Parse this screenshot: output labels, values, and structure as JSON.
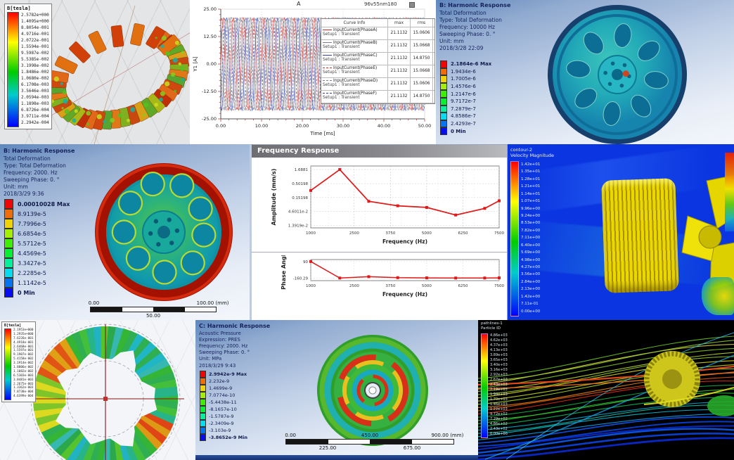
{
  "panels": {
    "torus": {
      "legend_title": "B[tesla]",
      "legend_values": [
        "2.5782e+000",
        "1.4095e+000",
        "8.8054e-001",
        "4.9716e-001",
        "2.0722e-001",
        "1.5594e-001",
        "9.5987e-002",
        "5.5385e-002",
        "3.1998e-002",
        "1.8486e-002",
        "1.0680e-002",
        "6.1708e-003",
        "3.5646e-003",
        "2.0594e-003",
        "1.1898e-003",
        "6.8726e-004",
        "3.9711e-004",
        "2.2942e-004"
      ]
    },
    "currents": {
      "plot_title": "A",
      "window_label": "96v55nm180",
      "legend_headers": [
        "Curve Info",
        "max",
        "rms"
      ],
      "legend_rows": [
        {
          "name": "InputCurrent(PhaseA)",
          "setup": "Setup1 : Transient",
          "max": "21.1132",
          "rms": "15.0606",
          "color": "#c03028",
          "dash": "solid"
        },
        {
          "name": "InputCurrent(PhaseB)",
          "setup": "Setup1 : Transient",
          "max": "21.1132",
          "rms": "15.0668",
          "color": "#7d7d92",
          "dash": "solid"
        },
        {
          "name": "InputCurrent(PhaseC)",
          "setup": "Setup1 : Transient",
          "max": "21.1132",
          "rms": "14.8750",
          "color": "#2f3f9e",
          "dash": "solid"
        },
        {
          "name": "InputCurrent(PhaseE)",
          "setup": "Setup1 : Transient",
          "max": "21.1132",
          "rms": "15.0668",
          "color": "#c03028",
          "dash": "dash"
        },
        {
          "name": "InputCurrent(PhaseD)",
          "setup": "Setup1 : Transient",
          "max": "21.1132",
          "rms": "15.0606",
          "color": "#7d7d92",
          "dash": "dash"
        },
        {
          "name": "InputCurrent(PhaseF)",
          "setup": "Setup1 : Transient",
          "max": "21.1132",
          "rms": "14.8750",
          "color": "#2f3f9e",
          "dash": "dash"
        }
      ]
    },
    "harmonic_top": {
      "header_lines": [
        "B: Harmonic Response",
        "Total Deformation",
        "Type: Total Deformation",
        "Frequency: 10000 Hz",
        "Sweeping Phase: 0. °",
        "Unit: mm",
        "2018/3/28 22:09"
      ],
      "legend_values": [
        "2.1864e-6 Max",
        "1.9434e-6",
        "1.7005e-6",
        "1.4576e-6",
        "1.2147e-6",
        "9.7172e-7",
        "7.2879e-7",
        "4.8586e-7",
        "2.4293e-7",
        "0 Min"
      ]
    },
    "harmonic_left": {
      "header_lines": [
        "B: Harmonic Response",
        "Total Deformation",
        "Type: Total Deformation",
        "Frequency: 2000. Hz",
        "Sweeping Phase: 0. °",
        "Unit: mm",
        "2018/3/29 9:36"
      ],
      "legend_values": [
        "0.00010028 Max",
        "8.9139e-5",
        "7.7996e-5",
        "6.6854e-5",
        "5.5712e-5",
        "4.4569e-5",
        "3.3427e-5",
        "2.2285e-5",
        "1.1142e-5",
        "0 Min"
      ],
      "ruler": {
        "top": [
          "0.00",
          "100.00 (mm)"
        ],
        "bottom": [
          "50.00"
        ]
      }
    },
    "freq_response": {
      "window_title": "Frequency Response"
    },
    "cfd_velocity": {
      "legend_title_lines": [
        "contour-2",
        "Velocity Magnitude"
      ],
      "legend_values": [
        "1.42e+01",
        "1.35e+01",
        "1.28e+01",
        "1.21e+01",
        "1.14e+01",
        "1.07e+01",
        "9.96e+00",
        "9.24e+00",
        "8.53e+00",
        "7.82e+00",
        "7.11e+00",
        "6.40e+00",
        "5.69e+00",
        "4.98e+00",
        "4.27e+00",
        "3.56e+00",
        "2.84e+00",
        "2.13e+00",
        "1.42e+00",
        "7.11e-01",
        "0.00e+00"
      ]
    },
    "field_ring": {
      "legend_title": "B[tesla]",
      "legend_values": [
        "2.1953e+000",
        "1.2935e+000",
        "7.6226e-001",
        "4.4918e-001",
        "2.6468e-001",
        "1.5597e-001",
        "9.1907e-002",
        "5.4158e-002",
        "3.1914e-002",
        "1.8806e-002",
        "1.1082e-002",
        "6.5303e-003",
        "3.8481e-003",
        "2.2675e-003",
        "1.3362e-003",
        "7.8738e-004",
        "4.6399e-004"
      ]
    },
    "acoustic": {
      "header_lines": [
        "C: Harmonic Response",
        "Acoustic Pressure",
        "Expression: PRES",
        "Frequency: 2000. Hz",
        "Sweeping Phase: 0. °",
        "Unit: MPa",
        "2018/3/29 9:43"
      ],
      "legend_values": [
        "2.9942e-9 Max",
        "2.232e-9",
        "1.4699e-9",
        "7.0774e-10",
        "-5.4438e-11",
        "-8.1657e-10",
        "-1.5787e-9",
        "-2.3409e-9",
        "-3.103e-9",
        "-3.8652e-9 Min"
      ],
      "ruler": {
        "top": [
          "0.00",
          "450.00",
          "900.00 (mm)"
        ],
        "bottom": [
          "225.00",
          "675.00"
        ]
      }
    },
    "streamlines": {
      "legend_title_lines": [
        "pathlines-1",
        "Particle ID"
      ],
      "legend_values": [
        "4.86e+03",
        "4.62e+03",
        "4.37e+03",
        "4.13e+03",
        "3.89e+03",
        "3.65e+03",
        "3.40e+03",
        "3.16e+03",
        "2.92e+03",
        "2.67e+03",
        "2.43e+03",
        "2.19e+03",
        "1.94e+03",
        "1.70e+03",
        "1.46e+03",
        "1.22e+03",
        "9.72e+02",
        "7.29e+02",
        "4.86e+02",
        "2.43e+02",
        "0.00e+00"
      ]
    }
  },
  "chart_data": [
    {
      "id": "currents",
      "type": "line",
      "title": "A",
      "xlabel": "Time [ms]",
      "ylabel": "Y1 [A]",
      "xlim": [
        0,
        50
      ],
      "ylim": [
        -25,
        25
      ],
      "xticks": [
        "0.00",
        "10.00",
        "20.00",
        "30.00",
        "40.00",
        "50.00"
      ],
      "xtick_vals": [
        0,
        10,
        20,
        30,
        40,
        50
      ],
      "yticks": [
        "25.00",
        "12.50",
        "0.00",
        "-12.50",
        "-25.00"
      ],
      "ytick_vals": [
        25,
        12.5,
        0,
        -12.5,
        -25
      ],
      "waveform": "sine",
      "period_ms": 2.5,
      "series": [
        {
          "name": "InputCurrent(PhaseA)",
          "max": 21.1132,
          "rms": 15.0606,
          "phase_deg": 0,
          "color": "#c03028",
          "dash": "solid"
        },
        {
          "name": "InputCurrent(PhaseB)",
          "max": 21.1132,
          "rms": 15.0668,
          "phase_deg": 120,
          "color": "#7d7d92",
          "dash": "solid"
        },
        {
          "name": "InputCurrent(PhaseC)",
          "max": 21.1132,
          "rms": 14.875,
          "phase_deg": 240,
          "color": "#2f3f9e",
          "dash": "solid"
        },
        {
          "name": "InputCurrent(PhaseE)",
          "max": 21.1132,
          "rms": 15.0668,
          "phase_deg": 60,
          "color": "#c03028",
          "dash": "dash"
        },
        {
          "name": "InputCurrent(PhaseD)",
          "max": 21.1132,
          "rms": 15.0606,
          "phase_deg": 180,
          "color": "#7d7d92",
          "dash": "dash"
        },
        {
          "name": "InputCurrent(PhaseF)",
          "max": 21.1132,
          "rms": 14.875,
          "phase_deg": 300,
          "color": "#2f3f9e",
          "dash": "dash"
        }
      ]
    },
    {
      "id": "freq_amplitude",
      "type": "line",
      "yscale": "log",
      "ylabel": "Amplitude (mm/s)",
      "xlabel": "Frequency (Hz)",
      "x": [
        1000,
        2000,
        3000,
        4000,
        5000,
        6000,
        7000,
        7500
      ],
      "y": [
        0.28,
        1.6881,
        0.11,
        0.075,
        0.065,
        0.034,
        0.06,
        0.115
      ],
      "yticks": [
        1.6881,
        0.50198,
        0.15198,
        0.046011,
        0.013919
      ],
      "ytick_labels": [
        "1.6881",
        "0.50198",
        "0.15198",
        "4.6011e-2",
        "1.3919e-2"
      ],
      "xticks": [
        1000,
        2500,
        3750,
        5000,
        6250,
        7500
      ],
      "xlim": [
        1000,
        7500
      ],
      "color": "#e01818"
    },
    {
      "id": "freq_phase",
      "type": "line",
      "ylabel": "Phase Angle",
      "xlabel": "Frequency (Hz)",
      "x": [
        1000,
        2000,
        3000,
        4000,
        5000,
        6000,
        7000,
        7500
      ],
      "y": [
        90,
        -160.29,
        -140,
        -155,
        -158,
        -160,
        -160,
        -158
      ],
      "yticks": [
        90,
        -160.29
      ],
      "ytick_labels": [
        "90",
        "-160.29"
      ],
      "xticks": [
        1000,
        2500,
        3750,
        5000,
        6250,
        7500
      ],
      "ylim": [
        -200,
        120
      ],
      "xlim": [
        1000,
        7500
      ],
      "color": "#e01818"
    }
  ]
}
